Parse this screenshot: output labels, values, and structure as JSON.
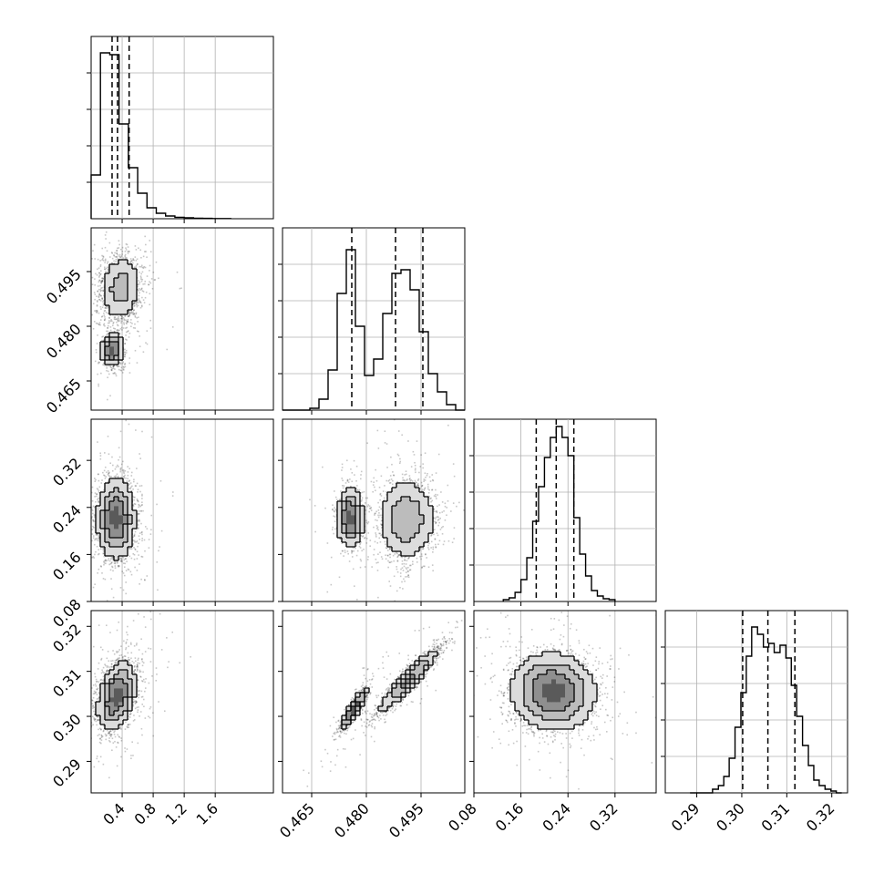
{
  "chart_data": {
    "type": "scatter",
    "kind": "corner plot (pairwise posterior samples)",
    "parameters": [
      {
        "range": [
          0,
          2.35
        ],
        "ticks": [
          0.4,
          0.8,
          1.2,
          1.6
        ],
        "tick_labels": [
          "0.4",
          "0.8",
          "1.2",
          "1.6"
        ]
      },
      {
        "range": [
          0.457,
          0.507
        ],
        "ticks": [
          0.465,
          0.48,
          0.495
        ],
        "tick_labels": [
          "0.465",
          "0.480",
          "0.495"
        ]
      },
      {
        "range": [
          0.08,
          0.39
        ],
        "ticks": [
          0.08,
          0.16,
          0.24,
          0.32
        ],
        "tick_labels": [
          "0.08",
          "0.16",
          "0.24",
          "0.32"
        ]
      },
      {
        "range": [
          0.283,
          0.3235
        ],
        "ticks": [
          0.29,
          0.3,
          0.31,
          0.32
        ],
        "tick_labels": [
          "0.29",
          "0.30",
          "0.31",
          "0.32"
        ]
      }
    ],
    "quantile_lines": [
      [
        0.27,
        0.34,
        0.49
      ],
      [
        0.476,
        0.488,
        0.4955
      ],
      [
        0.186,
        0.22,
        0.25
      ],
      [
        0.3002,
        0.3058,
        0.3118
      ]
    ],
    "histograms": [
      {
        "edges": [
          0,
          0.12,
          0.24,
          0.36,
          0.48,
          0.6,
          0.72,
          0.84,
          0.96,
          1.08,
          1.2,
          1.32,
          1.44,
          1.56,
          1.68,
          1.8
        ],
        "values": [
          0.24,
          0.91,
          0.9,
          0.52,
          0.28,
          0.14,
          0.06,
          0.03,
          0.015,
          0.008,
          0.005,
          0.003,
          0.002,
          0.001,
          0.001
        ]
      },
      {
        "edges": [
          0.457,
          0.4595,
          0.462,
          0.4645,
          0.467,
          0.4695,
          0.472,
          0.4745,
          0.477,
          0.4795,
          0.482,
          0.4845,
          0.487,
          0.4895,
          0.492,
          0.4945,
          0.497,
          0.4995,
          0.502,
          0.5045,
          0.507
        ],
        "values": [
          0.0,
          0.0,
          0.0,
          0.01,
          0.06,
          0.22,
          0.64,
          0.88,
          0.46,
          0.19,
          0.28,
          0.53,
          0.75,
          0.77,
          0.66,
          0.43,
          0.2,
          0.1,
          0.03,
          0.0
        ]
      },
      {
        "edges": [
          0.13,
          0.14,
          0.15,
          0.16,
          0.17,
          0.18,
          0.19,
          0.2,
          0.21,
          0.22,
          0.23,
          0.24,
          0.25,
          0.26,
          0.27,
          0.28,
          0.29,
          0.3,
          0.31,
          0.32
        ],
        "values": [
          0.01,
          0.02,
          0.05,
          0.12,
          0.24,
          0.44,
          0.63,
          0.79,
          0.9,
          0.96,
          0.9,
          0.8,
          0.46,
          0.26,
          0.14,
          0.06,
          0.03,
          0.015,
          0.01
        ]
      },
      {
        "edges": [
          0.2885,
          0.2898,
          0.291,
          0.2922,
          0.2935,
          0.2948,
          0.296,
          0.2972,
          0.2985,
          0.2998,
          0.301,
          0.3022,
          0.3035,
          0.3048,
          0.306,
          0.3072,
          0.3085,
          0.3098,
          0.311,
          0.3122,
          0.3135,
          0.3148,
          0.316,
          0.3172,
          0.3185,
          0.3198,
          0.321,
          0.3222
        ],
        "values": [
          0.0,
          0.0,
          0.0,
          0.0,
          0.02,
          0.04,
          0.09,
          0.19,
          0.36,
          0.55,
          0.75,
          0.91,
          0.87,
          0.8,
          0.82,
          0.77,
          0.81,
          0.74,
          0.59,
          0.42,
          0.26,
          0.15,
          0.07,
          0.04,
          0.02,
          0.01,
          0.0
        ]
      }
    ],
    "pairs": [
      {
        "row": 1,
        "col": 0,
        "modes": [
          {
            "x": 0.27,
            "y": 0.4735,
            "sx": 0.07,
            "sy": 0.0022,
            "rho": 0.0,
            "w": 0.36
          },
          {
            "x": 0.38,
            "y": 0.4905,
            "sx": 0.13,
            "sy": 0.0045,
            "rho": 0.1,
            "w": 0.64
          }
        ]
      },
      {
        "row": 2,
        "col": 0,
        "modes": [
          {
            "x": 0.32,
            "y": 0.22,
            "sx": 0.12,
            "sy": 0.033,
            "rho": 0.0,
            "w": 1.0
          }
        ]
      },
      {
        "row": 2,
        "col": 1,
        "modes": [
          {
            "x": 0.4755,
            "y": 0.222,
            "sx": 0.0018,
            "sy": 0.024,
            "rho": 0.0,
            "w": 0.36
          },
          {
            "x": 0.491,
            "y": 0.22,
            "sx": 0.004,
            "sy": 0.035,
            "rho": 0.0,
            "w": 0.64
          }
        ]
      },
      {
        "row": 3,
        "col": 0,
        "modes": [
          {
            "x": 0.33,
            "y": 0.3045,
            "sx": 0.12,
            "sy": 0.0037,
            "rho": 0.35,
            "w": 1.0
          }
        ]
      },
      {
        "row": 3,
        "col": 1,
        "modes": [
          {
            "x": 0.4765,
            "y": 0.3015,
            "sx": 0.0018,
            "sy": 0.0022,
            "rho": 0.88,
            "w": 0.36
          },
          {
            "x": 0.4915,
            "y": 0.308,
            "sx": 0.0042,
            "sy": 0.0036,
            "rho": 0.93,
            "w": 0.64
          }
        ]
      },
      {
        "row": 3,
        "col": 2,
        "modes": [
          {
            "x": 0.215,
            "y": 0.3055,
            "sx": 0.035,
            "sy": 0.0042,
            "rho": -0.05,
            "w": 1.0
          }
        ]
      }
    ]
  }
}
